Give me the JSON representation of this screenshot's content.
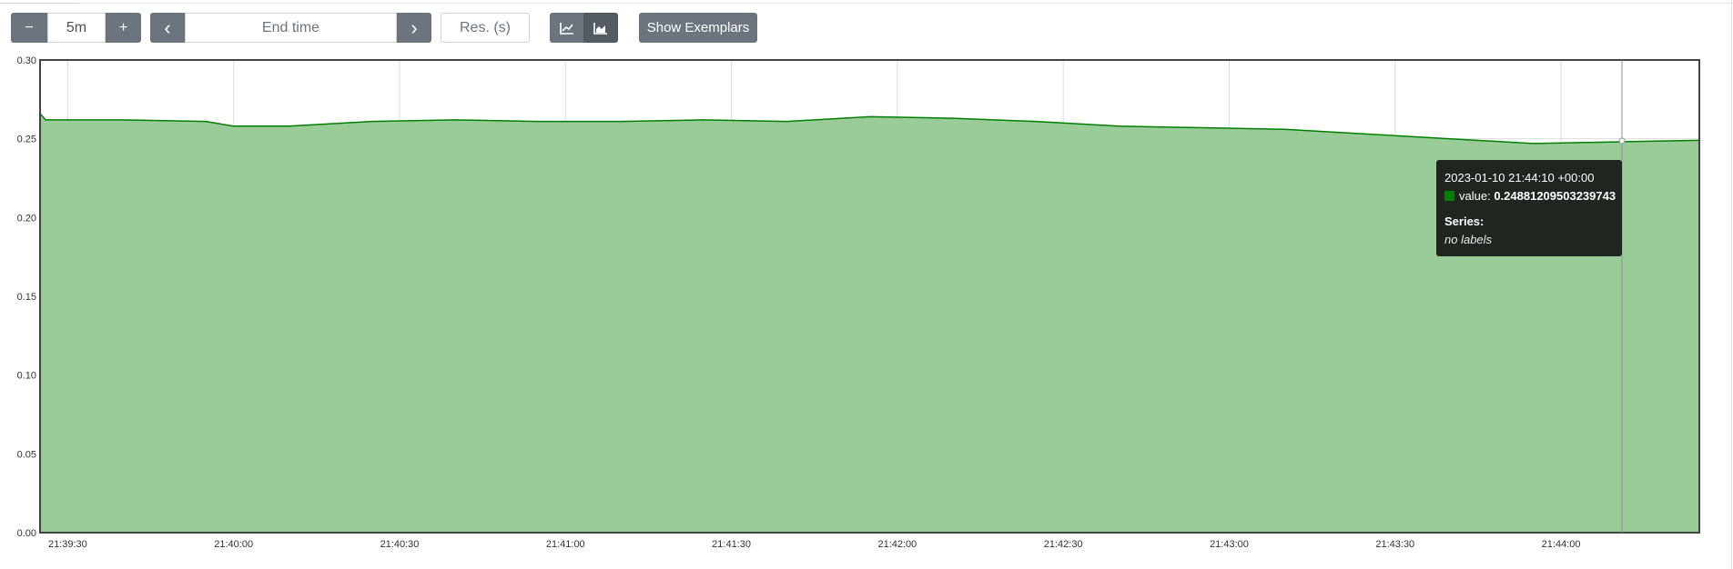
{
  "toolbar": {
    "minus_label": "−",
    "range_value": "5m",
    "plus_label": "+",
    "prev_label": "‹",
    "end_time_placeholder": "End time",
    "next_label": "›",
    "resolution_placeholder": "Res. (s)",
    "line_mode_icon": "line-chart-icon",
    "stacked_mode_icon": "area-chart-icon",
    "exemplars_label": "Show Exemplars"
  },
  "chart_data": {
    "type": "area",
    "x_tick_labels": [
      "21:39:30",
      "21:40:00",
      "21:40:30",
      "21:41:00",
      "21:41:30",
      "21:42:00",
      "21:42:30",
      "21:43:00",
      "21:43:30",
      "21:44:00"
    ],
    "y_tick_labels": [
      "0.00",
      "0.05",
      "0.10",
      "0.15",
      "0.20",
      "0.25",
      "0.30"
    ],
    "ylim": [
      0,
      0.3
    ],
    "xlim": [
      "21:39:25",
      "21:44:25"
    ],
    "grid": true,
    "series": [
      {
        "color": "#008000",
        "fill": "#99cc99",
        "x": [
          "21:39:25",
          "21:39:26",
          "21:39:40",
          "21:39:55",
          "21:40:00",
          "21:40:10",
          "21:40:25",
          "21:40:40",
          "21:40:55",
          "21:41:10",
          "21:41:25",
          "21:41:40",
          "21:41:55",
          "21:42:10",
          "21:42:25",
          "21:42:40",
          "21:42:55",
          "21:43:10",
          "21:43:25",
          "21:43:40",
          "21:43:55",
          "21:44:10",
          "21:44:25"
        ],
        "values": [
          0.266,
          0.262,
          0.262,
          0.261,
          0.258,
          0.258,
          0.261,
          0.262,
          0.261,
          0.261,
          0.262,
          0.261,
          0.264,
          0.263,
          0.261,
          0.258,
          0.257,
          0.256,
          0.253,
          0.25,
          0.247,
          0.248,
          0.249
        ]
      }
    ]
  },
  "tooltip": {
    "time": "2023-01-10 21:44:10 +00:00",
    "value_label": "value:",
    "value": "0.24881209503239743",
    "series_label": "Series:",
    "labels": "no labels"
  }
}
